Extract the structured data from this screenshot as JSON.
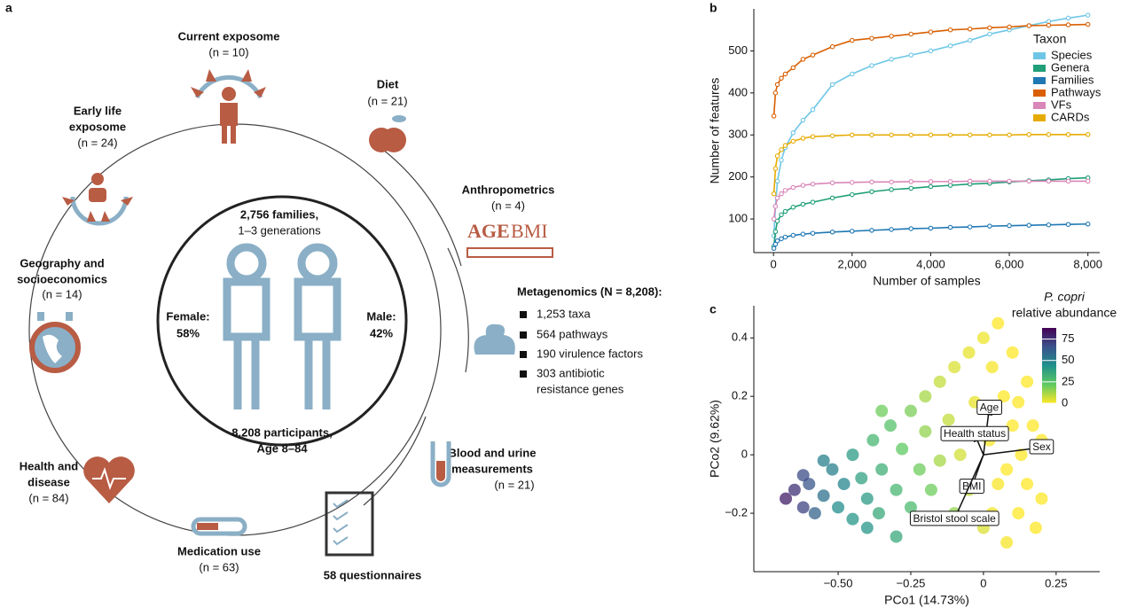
{
  "panel_labels": [
    "a",
    "b",
    "c"
  ],
  "panel_a": {
    "center": {
      "families": "2,756 families,",
      "generations": "1–3 generations",
      "female": "Female:",
      "female_pct": "58%",
      "male": "Male:",
      "male_pct": "42%",
      "participants": "8,208 participants,",
      "age": "Age 8–84"
    },
    "items": [
      {
        "title": [
          "Current exposome"
        ],
        "n": "(n = 10)"
      },
      {
        "title": [
          "Diet"
        ],
        "n": "(n = 21)"
      },
      {
        "title": [
          "Early life",
          "exposome"
        ],
        "n": "(n = 24)"
      },
      {
        "title": [
          "Anthropometrics"
        ],
        "n": "(n = 4)"
      },
      {
        "title": [
          "Geography and",
          "socioeconomics"
        ],
        "n": "(n = 14)"
      },
      {
        "title": [
          "Health and",
          "disease"
        ],
        "n": "(n = 84)"
      },
      {
        "title": [
          "Blood and urine",
          "measurements"
        ],
        "n": "(n = 21)"
      },
      {
        "title": [
          "Medication use"
        ],
        "n": "(n = 63)"
      },
      {
        "title": [
          "58 questionnaires"
        ]
      }
    ],
    "anthropometrics_icon": [
      "AGE",
      "BMI"
    ],
    "metagenomics": {
      "title": "Metagenomics (N = 8,208):",
      "list": [
        "1,253 taxa",
        "564 pathways",
        "190 virulence factors",
        "303 antibiotic",
        "resistance genes"
      ]
    }
  },
  "chart_data": [
    {
      "type": "line",
      "xlabel": "Number of samples",
      "ylabel": "Number of features",
      "legend_title": "Taxon",
      "legend": "upper right",
      "x": [
        10,
        50,
        100,
        200,
        300,
        500,
        750,
        1000,
        1500,
        2000,
        2500,
        3000,
        3500,
        4000,
        4500,
        5000,
        5500,
        6000,
        6500,
        7000,
        7500,
        8000
      ],
      "series": [
        {
          "name": "Species",
          "color": "#6ec6e6",
          "values": [
            60,
            130,
            190,
            240,
            270,
            305,
            335,
            360,
            420,
            445,
            465,
            480,
            490,
            500,
            512,
            525,
            540,
            550,
            560,
            570,
            578,
            585
          ]
        },
        {
          "name": "Genera",
          "color": "#1f9e77",
          "values": [
            35,
            70,
            95,
            110,
            118,
            128,
            135,
            140,
            150,
            158,
            165,
            170,
            173,
            177,
            180,
            183,
            185,
            188,
            191,
            193,
            196,
            198
          ]
        },
        {
          "name": "Families",
          "color": "#1f78b4",
          "values": [
            30,
            40,
            48,
            53,
            57,
            61,
            64,
            66,
            69,
            71,
            73,
            75,
            77,
            78,
            80,
            81,
            83,
            84,
            85,
            86,
            87,
            88
          ]
        },
        {
          "name": "Pathways",
          "color": "#d95f02",
          "values": [
            345,
            400,
            420,
            435,
            445,
            460,
            480,
            490,
            510,
            525,
            530,
            535,
            540,
            545,
            550,
            552,
            555,
            557,
            560,
            561,
            562,
            563
          ]
        },
        {
          "name": "VFs",
          "color": "#d987b8",
          "values": [
            100,
            130,
            150,
            160,
            168,
            175,
            180,
            183,
            186,
            187,
            188,
            188,
            189,
            189,
            189,
            190,
            190,
            190,
            190,
            190,
            190,
            190
          ]
        },
        {
          "name": "CARDs",
          "color": "#e6ab02",
          "values": [
            160,
            220,
            250,
            265,
            275,
            285,
            292,
            296,
            298,
            300,
            300,
            300,
            300,
            300,
            300,
            300,
            300,
            300,
            301,
            301,
            301,
            301
          ]
        }
      ],
      "xlim": [
        -500,
        8300
      ],
      "xticks": [
        0,
        {
          "value": 2000,
          "label": "2,000"
        },
        {
          "value": 4000,
          "label": "4,000"
        },
        {
          "value": 6000,
          "label": "6,000"
        },
        {
          "value": 8000,
          "label": "8,000"
        }
      ],
      "ylim": [
        20,
        600
      ],
      "yticks": [
        100,
        200,
        300,
        400,
        500
      ]
    },
    {
      "type": "scatter",
      "xlabel": "PCo1 (14.73%)",
      "ylabel": "PCo2 (9.62%)",
      "colorbar_title": [
        "P. copri",
        "relative abundance"
      ],
      "clim": [
        0,
        88
      ],
      "cticks": [
        0,
        25,
        50,
        75
      ],
      "xlim": [
        -0.79,
        0.4
      ],
      "xticks": [
        {
          "value": -0.5,
          "label": "−0.50"
        },
        {
          "value": -0.25,
          "label": "−0.25"
        },
        0,
        0.25
      ],
      "ylim": [
        -0.4,
        0.51
      ],
      "yticks": [
        {
          "value": -0.2,
          "label": "−0.2"
        },
        0,
        0.2,
        0.4
      ],
      "x": [
        -0.68,
        -0.65,
        -0.62,
        -0.6,
        -0.58,
        -0.55,
        -0.52,
        -0.5,
        -0.48,
        -0.45,
        -0.45,
        -0.42,
        -0.4,
        -0.38,
        -0.36,
        -0.35,
        -0.32,
        -0.3,
        -0.28,
        -0.25,
        -0.25,
        -0.22,
        -0.2,
        -0.2,
        -0.18,
        -0.15,
        -0.15,
        -0.12,
        -0.1,
        -0.1,
        -0.08,
        -0.05,
        -0.05,
        -0.03,
        0.0,
        0.0,
        0.02,
        0.03,
        0.05,
        0.05,
        0.07,
        0.08,
        0.1,
        0.1,
        0.12,
        0.13,
        0.15,
        0.15,
        0.17,
        0.18,
        0.2,
        0.2,
        0.08,
        0.12,
        0.03,
        -0.35,
        -0.55,
        -0.62,
        -0.4,
        -0.3
      ],
      "y": [
        -0.15,
        -0.12,
        -0.18,
        -0.1,
        -0.2,
        -0.14,
        -0.05,
        -0.18,
        -0.1,
        -0.22,
        0.0,
        -0.08,
        -0.15,
        0.05,
        -0.2,
        -0.05,
        0.1,
        -0.12,
        0.02,
        0.15,
        -0.18,
        -0.05,
        0.2,
        0.08,
        -0.12,
        0.25,
        -0.02,
        0.12,
        -0.2,
        0.3,
        0.0,
        0.35,
        -0.12,
        0.18,
        0.4,
        -0.25,
        0.05,
        0.3,
        -0.1,
        0.45,
        0.2,
        -0.3,
        0.1,
        0.35,
        -0.2,
        0.0,
        0.25,
        -0.1,
        0.1,
        -0.25,
        0.05,
        -0.15,
        -0.05,
        0.18,
        -0.2,
        0.15,
        -0.02,
        -0.07,
        -0.25,
        -0.28
      ],
      "abundance": [
        80,
        75,
        70,
        65,
        60,
        55,
        50,
        45,
        48,
        42,
        40,
        38,
        40,
        30,
        35,
        33,
        25,
        30,
        22,
        18,
        28,
        20,
        12,
        15,
        20,
        8,
        12,
        8,
        15,
        5,
        6,
        3,
        8,
        3,
        2,
        5,
        1,
        1,
        1,
        0,
        0,
        1,
        0,
        0,
        0,
        0,
        0,
        0,
        0,
        0,
        0,
        0,
        0,
        0,
        2,
        20,
        50,
        68,
        42,
        35
      ],
      "arrows": [
        {
          "label": "Age",
          "x": 0.02,
          "y": 0.16
        },
        {
          "label": "Sex",
          "x": 0.2,
          "y": 0.025
        },
        {
          "label": "Health status",
          "x": -0.03,
          "y": 0.07
        },
        {
          "label": "BMI",
          "x": -0.04,
          "y": -0.11
        },
        {
          "label": "Bristol stool scale",
          "x": -0.1,
          "y": -0.22
        }
      ]
    }
  ]
}
